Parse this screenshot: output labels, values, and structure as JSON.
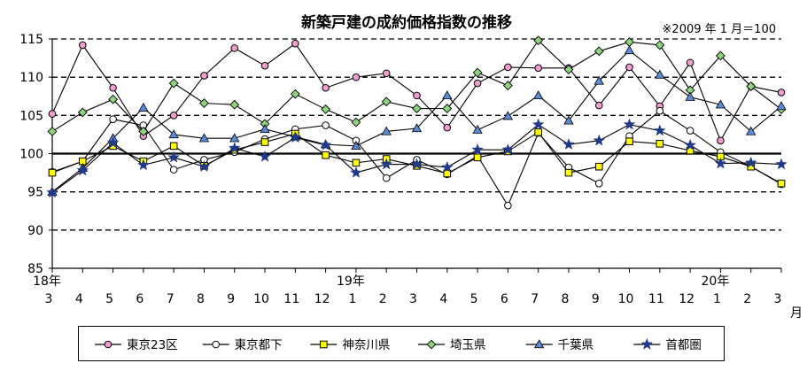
{
  "chart_data": {
    "type": "line",
    "title": "新築戸建の成約価格指数の推移",
    "note": "※2009 年 1 月＝100",
    "x_tick_labels": [
      "3",
      "4",
      "5",
      "6",
      "7",
      "8",
      "9",
      "10",
      "11",
      "12",
      "1",
      "2",
      "3",
      "4",
      "5",
      "6",
      "7",
      "8",
      "9",
      "10",
      "11",
      "12",
      "1",
      "2",
      "3"
    ],
    "year_labels": [
      {
        "label": "18年",
        "index": 0
      },
      {
        "label": "19年",
        "index": 10
      },
      {
        "label": "20年",
        "index": 22
      }
    ],
    "xunit": "月",
    "ylim": [
      85,
      115
    ],
    "y_ticks": [
      85,
      90,
      95,
      100,
      105,
      110,
      115
    ],
    "dashed_gridlines": [
      90,
      95,
      105,
      110,
      115
    ],
    "baseline": 100,
    "series": [
      {
        "name": "東京23区",
        "marker": "circle",
        "fill": "#f09ed0",
        "values": [
          105.2,
          114.2,
          108.6,
          102.3,
          105.0,
          110.2,
          113.8,
          111.5,
          114.4,
          108.6,
          110.0,
          110.5,
          107.6,
          103.4,
          109.2,
          111.3,
          111.2,
          111.2,
          106.3,
          111.3,
          106.2,
          111.9,
          101.7,
          108.8,
          108.0
        ]
      },
      {
        "name": "東京都下",
        "marker": "circle",
        "fill": "#ffffff",
        "values": [
          97.6,
          99.0,
          104.5,
          103.7,
          97.9,
          99.2,
          100.2,
          101.9,
          103.2,
          103.7,
          101.7,
          96.8,
          99.2,
          97.3,
          99.7,
          93.2,
          102.7,
          98.2,
          96.1,
          102.3,
          105.6,
          103.0,
          100.2,
          98.3,
          96.0
        ]
      },
      {
        "name": "神奈川県",
        "marker": "square",
        "fill": "#ffff00",
        "values": [
          97.5,
          99.0,
          101.0,
          99.0,
          101.0,
          98.4,
          100.5,
          101.5,
          102.6,
          99.8,
          98.8,
          99.3,
          98.4,
          97.4,
          99.5,
          100.3,
          102.8,
          97.5,
          98.3,
          101.6,
          101.3,
          100.4,
          99.6,
          98.3,
          96.1
        ]
      },
      {
        "name": "埼玉県",
        "marker": "diamond",
        "fill": "#8ed47e",
        "values": [
          102.9,
          105.4,
          107.1,
          102.9,
          109.2,
          106.6,
          106.4,
          103.9,
          107.8,
          105.8,
          104.1,
          106.8,
          105.9,
          105.9,
          110.6,
          108.9,
          114.8,
          111.0,
          113.4,
          114.6,
          114.2,
          108.3,
          112.8,
          108.8,
          105.8
        ]
      },
      {
        "name": "千葉県",
        "marker": "triangle",
        "fill": "#5b8bd6",
        "values": [
          95.0,
          98.1,
          102.0,
          106.0,
          102.5,
          102.0,
          102.0,
          103.2,
          102.2,
          101.2,
          101.0,
          102.9,
          103.3,
          107.6,
          103.1,
          104.9,
          107.6,
          104.3,
          109.5,
          113.5,
          110.3,
          107.4,
          106.4,
          102.9,
          106.2
        ]
      },
      {
        "name": "首都圏",
        "marker": "star",
        "fill": "#1f3a8a",
        "values": [
          94.9,
          97.8,
          101.4,
          98.5,
          99.5,
          98.3,
          100.7,
          99.6,
          102.1,
          101.1,
          97.5,
          98.6,
          98.6,
          98.2,
          100.5,
          100.5,
          103.8,
          101.2,
          101.7,
          103.8,
          103.0,
          101.1,
          98.7,
          98.8,
          98.6
        ]
      }
    ]
  }
}
